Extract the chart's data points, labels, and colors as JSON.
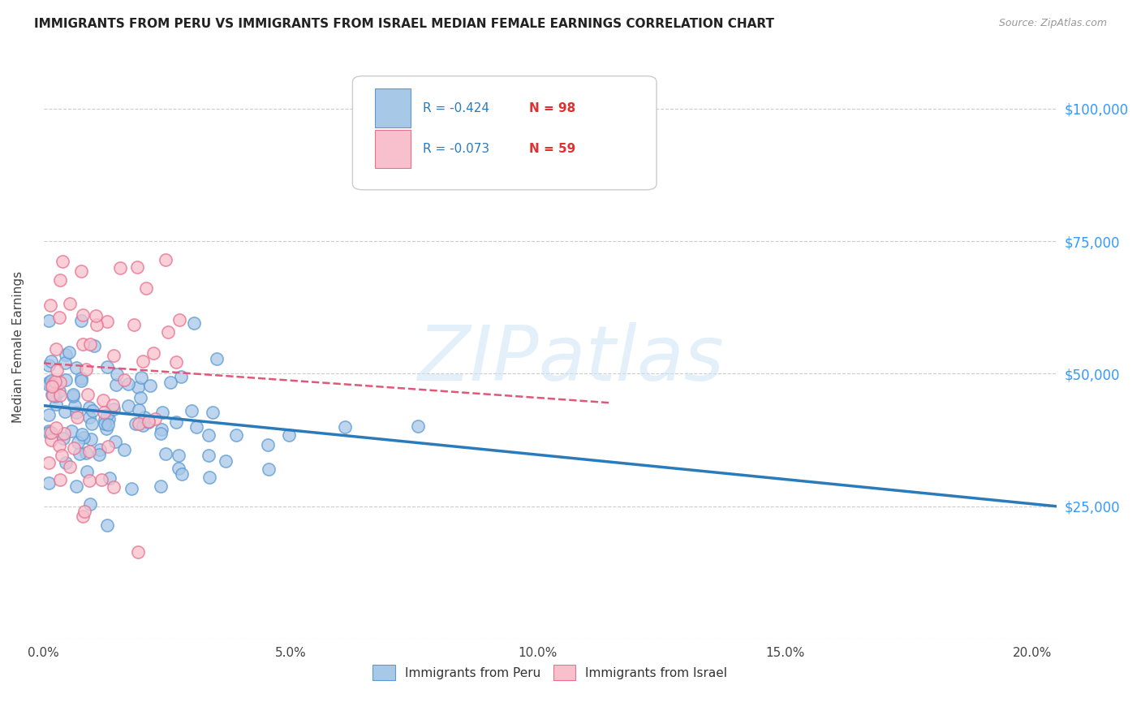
{
  "title": "IMMIGRANTS FROM PERU VS IMMIGRANTS FROM ISRAEL MEDIAN FEMALE EARNINGS CORRELATION CHART",
  "source": "Source: ZipAtlas.com",
  "ylabel": "Median Female Earnings",
  "yticks": [
    0,
    25000,
    50000,
    75000,
    100000
  ],
  "peru_color": "#a8c8e8",
  "peru_edge_color": "#5b9bd5",
  "israel_color": "#f8c0cc",
  "israel_edge_color": "#e87090",
  "peru_line_color": "#2b7bba",
  "israel_line_color": "#e05878",
  "watermark": "ZIPatlas",
  "legend_peru_label": "Immigrants from Peru",
  "legend_israel_label": "Immigrants from Israel",
  "peru_R": "-0.424",
  "peru_N": "98",
  "israel_R": "-0.073",
  "israel_N": "59",
  "background_color": "#ffffff",
  "grid_color": "#cccccc",
  "title_color": "#222222",
  "source_color": "#999999",
  "right_label_color": "#3399ff",
  "seed": 7,
  "xmin": 0.0,
  "xmax": 0.205,
  "ymin": 0,
  "ymax": 110000,
  "peru_line_x0": 0.0,
  "peru_line_y0": 44000,
  "peru_line_x1": 0.205,
  "peru_line_y1": 25000,
  "israel_line_x0": 0.0,
  "israel_line_y0": 52000,
  "israel_line_x1": 0.115,
  "israel_line_y1": 44500
}
